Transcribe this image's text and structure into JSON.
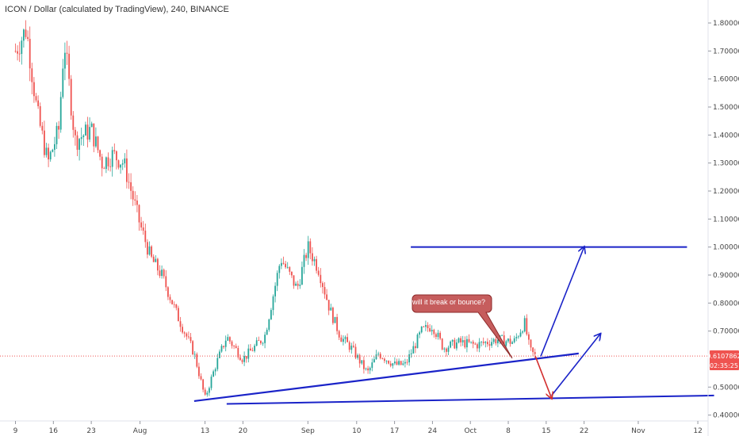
{
  "header": {
    "title": "ICON / Dollar (calculated by TradingView), 240, BINANCE"
  },
  "price_badge": {
    "value": "0.6107862",
    "countdown": "02:35:25"
  },
  "annotation": {
    "text": "will it break or bounce?"
  },
  "colors": {
    "up": "#26a69a",
    "down": "#ef5350",
    "drawing": "#1a23c8",
    "bearish_arrow": "#d32f2f",
    "callout_bg": "#c65d5d",
    "price_line": "#ef5350"
  },
  "chart_data": {
    "type": "candlestick",
    "title": "ICON / Dollar (calculated by TradingView), 240, BINANCE",
    "y_axis": {
      "ticks": [
        "1.8000000",
        "1.7000000",
        "1.6000000",
        "1.5000000",
        "1.4000000",
        "1.3000000",
        "1.2000000",
        "1.1000000",
        "1.0000000",
        "0.9000000",
        "0.8000000",
        "0.7000000",
        "0.5000000",
        "0.4000000"
      ]
    },
    "x_axis": {
      "ticks": [
        "9",
        "16",
        "23",
        "Aug",
        "13",
        "20",
        "Sep",
        "10",
        "17",
        "24",
        "Oct",
        "8",
        "15",
        "22",
        "Nov",
        "12"
      ]
    },
    "ylim": [
      0.38,
      1.85
    ],
    "series": [
      {
        "date": "Jul 9",
        "close": 1.7
      },
      {
        "date": "Jul 11",
        "close": 1.78
      },
      {
        "date": "Jul 13",
        "close": 1.48
      },
      {
        "date": "Jul 15",
        "close": 1.3
      },
      {
        "date": "Jul 17",
        "close": 1.42
      },
      {
        "date": "Jul 18",
        "close": 1.74
      },
      {
        "date": "Jul 20",
        "close": 1.38
      },
      {
        "date": "Jul 23",
        "close": 1.42
      },
      {
        "date": "Jul 25",
        "close": 1.3
      },
      {
        "date": "Jul 27",
        "close": 1.33
      },
      {
        "date": "Jul 29",
        "close": 1.3
      },
      {
        "date": "Aug 1",
        "close": 1.08
      },
      {
        "date": "Aug 3",
        "close": 0.96
      },
      {
        "date": "Aug 5",
        "close": 0.9
      },
      {
        "date": "Aug 8",
        "close": 0.75
      },
      {
        "date": "Aug 11",
        "close": 0.62
      },
      {
        "date": "Aug 13",
        "close": 0.46
      },
      {
        "date": "Aug 15",
        "close": 0.58
      },
      {
        "date": "Aug 17",
        "close": 0.68
      },
      {
        "date": "Aug 20",
        "close": 0.6
      },
      {
        "date": "Aug 24",
        "close": 0.68
      },
      {
        "date": "Aug 27",
        "close": 0.96
      },
      {
        "date": "Aug 30",
        "close": 0.85
      },
      {
        "date": "Sep 1",
        "close": 1.0
      },
      {
        "date": "Sep 3",
        "close": 0.92
      },
      {
        "date": "Sep 5",
        "close": 0.78
      },
      {
        "date": "Sep 7",
        "close": 0.68
      },
      {
        "date": "Sep 9",
        "close": 0.64
      },
      {
        "date": "Sep 12",
        "close": 0.55
      },
      {
        "date": "Sep 14",
        "close": 0.62
      },
      {
        "date": "Sep 17",
        "close": 0.58
      },
      {
        "date": "Sep 19",
        "close": 0.58
      },
      {
        "date": "Sep 22",
        "close": 0.7
      },
      {
        "date": "Sep 24",
        "close": 0.72
      },
      {
        "date": "Sep 26",
        "close": 0.64
      },
      {
        "date": "Sep 29",
        "close": 0.66
      },
      {
        "date": "Oct 2",
        "close": 0.65
      },
      {
        "date": "Oct 6",
        "close": 0.67
      },
      {
        "date": "Oct 9",
        "close": 0.66
      },
      {
        "date": "Oct 11",
        "close": 0.73
      },
      {
        "date": "Oct 12",
        "close": 0.63
      },
      {
        "date": "Oct 13",
        "close": 0.61
      }
    ],
    "drawings": {
      "resistance_line": {
        "from": [
          "Sep 20",
          1.0
        ],
        "to": [
          "Nov 10",
          1.0
        ]
      },
      "rising_support": {
        "from": [
          "Aug 11",
          0.45
        ],
        "to": [
          "Oct 21",
          0.62
        ]
      },
      "lower_support": {
        "from": [
          "Aug 17",
          0.44
        ],
        "to": [
          "Nov 15",
          0.47
        ]
      },
      "bullish_arrow_1": {
        "from": [
          "Oct 14",
          0.61
        ],
        "to": [
          "Oct 22",
          1.0
        ]
      },
      "bullish_arrow_2": {
        "from": [
          "Oct 16",
          0.47
        ],
        "to": [
          "Oct 25",
          0.69
        ]
      },
      "bearish_arrow": {
        "from": [
          "Oct 13",
          0.61
        ],
        "to": [
          "Oct 16",
          0.46
        ]
      }
    }
  }
}
